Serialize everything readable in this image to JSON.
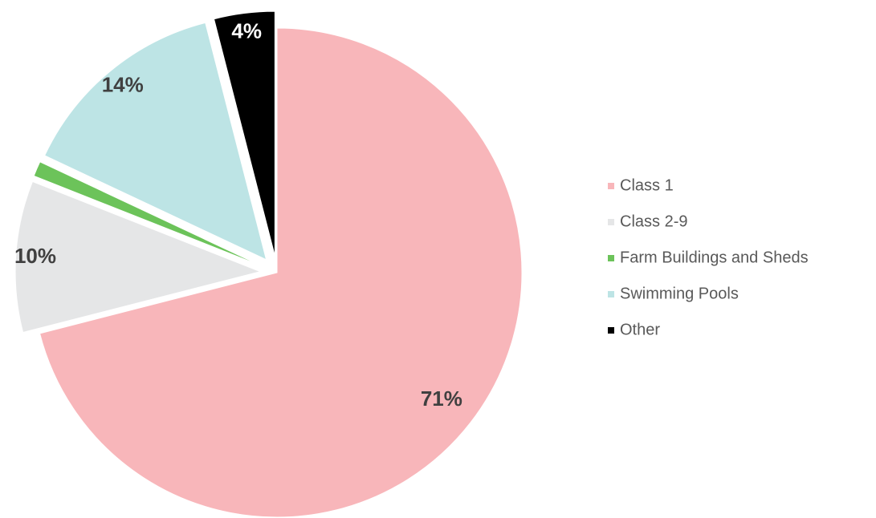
{
  "chart_data": {
    "type": "pie",
    "categories": [
      "Class 1",
      "Class 2-9",
      "Farm Buildings and Sheds",
      "Swimming Pools",
      "Other"
    ],
    "values": [
      71,
      10,
      1,
      14,
      4
    ],
    "value_labels": [
      "71%",
      "10%",
      null,
      "14%",
      "4%"
    ],
    "colors": [
      "#f8b6ba",
      "#e5e6e7",
      "#6cc35a",
      "#bde4e5",
      "#000000"
    ],
    "legend": "right"
  }
}
